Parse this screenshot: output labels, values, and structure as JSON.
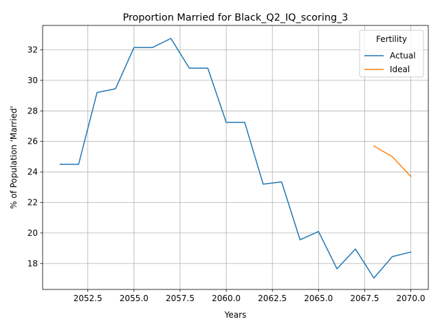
{
  "chart_data": {
    "type": "line",
    "title": "Proportion Married for Black_Q2_IQ_scoring_3",
    "xlabel": "Years",
    "ylabel": "% of Population 'Married'",
    "xlim": [
      2050.05,
      2070.95
    ],
    "ylim": [
      16.3,
      33.6
    ],
    "xticks": [
      2052.5,
      2055.0,
      2057.5,
      2060.0,
      2062.5,
      2065.0,
      2067.5,
      2070.0
    ],
    "xtick_labels": [
      "2052.5",
      "2055.0",
      "2057.5",
      "2060.0",
      "2062.5",
      "2065.0",
      "2067.5",
      "2070.0"
    ],
    "yticks": [
      18,
      20,
      22,
      24,
      26,
      28,
      30,
      32
    ],
    "ytick_labels": [
      "18",
      "20",
      "22",
      "24",
      "26",
      "28",
      "30",
      "32"
    ],
    "grid": true,
    "legend": {
      "title": "Fertility",
      "placement": "top-right"
    },
    "series": [
      {
        "name": "Actual",
        "color": "#1f77b4",
        "x": [
          2051,
          2052,
          2053,
          2054,
          2055,
          2056,
          2057,
          2058,
          2059,
          2060,
          2061,
          2062,
          2063,
          2064,
          2065,
          2066,
          2067,
          2068,
          2069,
          2070
        ],
        "y": [
          24.5,
          24.5,
          29.2,
          29.45,
          32.15,
          32.15,
          32.75,
          30.8,
          30.8,
          27.25,
          27.25,
          23.2,
          23.35,
          19.55,
          20.1,
          17.65,
          18.95,
          17.05,
          18.45,
          18.75
        ]
      },
      {
        "name": "Ideal",
        "color": "#ff7f0e",
        "x": [
          2068,
          2069,
          2070
        ],
        "y": [
          25.7,
          25.0,
          23.7
        ]
      }
    ]
  }
}
